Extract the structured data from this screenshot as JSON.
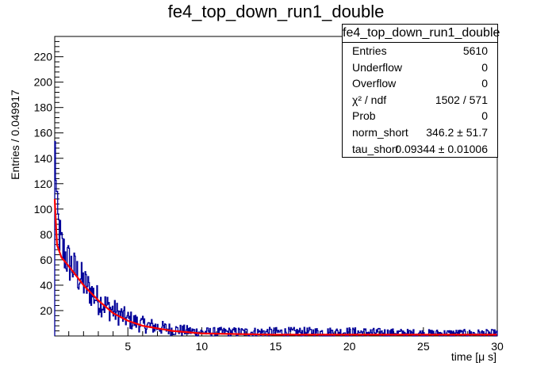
{
  "chart_data": {
    "type": "histogram",
    "title": "fe4_top_down_run1_double",
    "xlabel": "time [μ s]",
    "ylabel": "Entries / 0.049917",
    "xlim": [
      0.05,
      30
    ],
    "ylim": [
      0,
      236
    ],
    "xticks": [
      5,
      10,
      15,
      20,
      25,
      30
    ],
    "yticks": [
      20,
      40,
      60,
      80,
      100,
      120,
      140,
      160,
      180,
      200,
      220
    ],
    "bin_width": 0.049917,
    "series": [
      {
        "name": "data histogram",
        "color": "#000099",
        "approx_bin_values_by_x": [
          {
            "x": 0.1,
            "y": 145
          },
          {
            "x": 0.2,
            "y": 95
          },
          {
            "x": 0.5,
            "y": 70
          },
          {
            "x": 1.0,
            "y": 58
          },
          {
            "x": 2.0,
            "y": 42
          },
          {
            "x": 3.0,
            "y": 28
          },
          {
            "x": 4.0,
            "y": 20
          },
          {
            "x": 5.0,
            "y": 13
          },
          {
            "x": 6.0,
            "y": 9
          },
          {
            "x": 8.0,
            "y": 5
          },
          {
            "x": 10.0,
            "y": 3
          },
          {
            "x": 15.0,
            "y": 3
          },
          {
            "x": 20.0,
            "y": 3
          },
          {
            "x": 25.0,
            "y": 2
          },
          {
            "x": 30.0,
            "y": 2
          }
        ]
      },
      {
        "name": "fit",
        "color": "#ff0000",
        "points": [
          {
            "x": 0.05,
            "y": 108
          },
          {
            "x": 0.2,
            "y": 72
          },
          {
            "x": 0.5,
            "y": 62
          },
          {
            "x": 1.0,
            "y": 55
          },
          {
            "x": 2.0,
            "y": 40
          },
          {
            "x": 3.0,
            "y": 28
          },
          {
            "x": 4.0,
            "y": 18
          },
          {
            "x": 5.0,
            "y": 12
          },
          {
            "x": 6.0,
            "y": 8
          },
          {
            "x": 8.0,
            "y": 4
          },
          {
            "x": 10.0,
            "y": 2
          },
          {
            "x": 15.0,
            "y": 1
          },
          {
            "x": 20.0,
            "y": 1
          },
          {
            "x": 30.0,
            "y": 1
          }
        ]
      }
    ]
  },
  "stats": {
    "title": "fe4_top_down_run1_double",
    "rows": [
      {
        "key": "Entries",
        "value": "5610"
      },
      {
        "key": "Underflow",
        "value": "0"
      },
      {
        "key": "Overflow",
        "value": "0"
      },
      {
        "key": "χ² / ndf",
        "value": "1502 / 571"
      },
      {
        "key": "Prob",
        "value": "0"
      },
      {
        "key": "norm_short",
        "value": "346.2 ± 51.7"
      },
      {
        "key": "tau_short",
        "value": "0.09344 ± 0.01006"
      }
    ]
  }
}
